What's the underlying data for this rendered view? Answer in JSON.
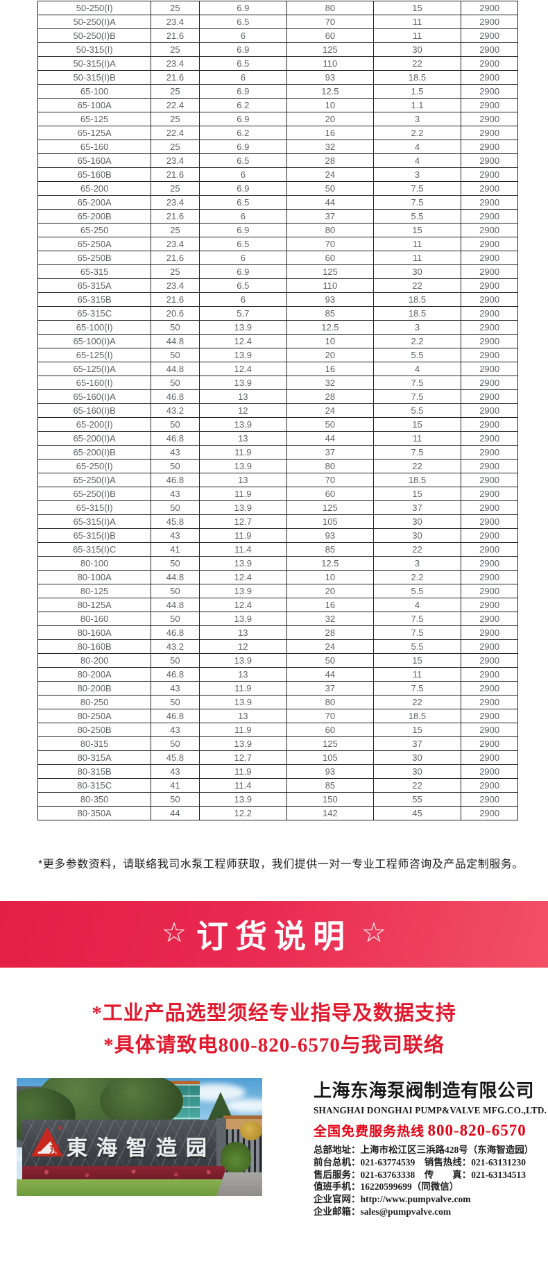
{
  "table": {
    "rows": [
      [
        "50-250(I)",
        "25",
        "6.9",
        "80",
        "15",
        "2900"
      ],
      [
        "50-250(I)A",
        "23.4",
        "6.5",
        "70",
        "11",
        "2900"
      ],
      [
        "50-250(I)B",
        "21.6",
        "6",
        "60",
        "11",
        "2900"
      ],
      [
        "50-315(I)",
        "25",
        "6.9",
        "125",
        "30",
        "2900"
      ],
      [
        "50-315(I)A",
        "23.4",
        "6.5",
        "110",
        "22",
        "2900"
      ],
      [
        "50-315(I)B",
        "21.6",
        "6",
        "93",
        "18.5",
        "2900"
      ],
      [
        "65-100",
        "25",
        "6.9",
        "12.5",
        "1.5",
        "2900"
      ],
      [
        "65-100A",
        "22.4",
        "6.2",
        "10",
        "1.1",
        "2900"
      ],
      [
        "65-125",
        "25",
        "6.9",
        "20",
        "3",
        "2900"
      ],
      [
        "65-125A",
        "22.4",
        "6.2",
        "16",
        "2.2",
        "2900"
      ],
      [
        "65-160",
        "25",
        "6.9",
        "32",
        "4",
        "2900"
      ],
      [
        "65-160A",
        "23.4",
        "6.5",
        "28",
        "4",
        "2900"
      ],
      [
        "65-160B",
        "21.6",
        "6",
        "24",
        "3",
        "2900"
      ],
      [
        "65-200",
        "25",
        "6.9",
        "50",
        "7.5",
        "2900"
      ],
      [
        "65-200A",
        "23.4",
        "6.5",
        "44",
        "7.5",
        "2900"
      ],
      [
        "65-200B",
        "21.6",
        "6",
        "37",
        "5.5",
        "2900"
      ],
      [
        "65-250",
        "25",
        "6.9",
        "80",
        "15",
        "2900"
      ],
      [
        "65-250A",
        "23.4",
        "6.5",
        "70",
        "11",
        "2900"
      ],
      [
        "65-250B",
        "21.6",
        "6",
        "60",
        "11",
        "2900"
      ],
      [
        "65-315",
        "25",
        "6.9",
        "125",
        "30",
        "2900"
      ],
      [
        "65-315A",
        "23.4",
        "6.5",
        "110",
        "22",
        "2900"
      ],
      [
        "65-315B",
        "21.6",
        "6",
        "93",
        "18.5",
        "2900"
      ],
      [
        "65-315C",
        "20.6",
        "5.7",
        "85",
        "18.5",
        "2900"
      ],
      [
        "65-100(I)",
        "50",
        "13.9",
        "12.5",
        "3",
        "2900"
      ],
      [
        "65-100(I)A",
        "44.8",
        "12.4",
        "10",
        "2.2",
        "2900"
      ],
      [
        "65-125(I)",
        "50",
        "13.9",
        "20",
        "5.5",
        "2900"
      ],
      [
        "65-125(I)A",
        "44.8",
        "12.4",
        "16",
        "4",
        "2900"
      ],
      [
        "65-160(I)",
        "50",
        "13.9",
        "32",
        "7.5",
        "2900"
      ],
      [
        "65-160(I)A",
        "46.8",
        "13",
        "28",
        "7.5",
        "2900"
      ],
      [
        "65-160(I)B",
        "43.2",
        "12",
        "24",
        "5.5",
        "2900"
      ],
      [
        "65-200(I)",
        "50",
        "13.9",
        "50",
        "15",
        "2900"
      ],
      [
        "65-200(I)A",
        "46.8",
        "13",
        "44",
        "11",
        "2900"
      ],
      [
        "65-200(I)B",
        "43",
        "11.9",
        "37",
        "7.5",
        "2900"
      ],
      [
        "65-250(I)",
        "50",
        "13.9",
        "80",
        "22",
        "2900"
      ],
      [
        "65-250(I)A",
        "46.8",
        "13",
        "70",
        "18.5",
        "2900"
      ],
      [
        "65-250(I)B",
        "43",
        "11.9",
        "60",
        "15",
        "2900"
      ],
      [
        "65-315(I)",
        "50",
        "13.9",
        "125",
        "37",
        "2900"
      ],
      [
        "65-315(I)A",
        "45.8",
        "12.7",
        "105",
        "30",
        "2900"
      ],
      [
        "65-315(I)B",
        "43",
        "11.9",
        "93",
        "30",
        "2900"
      ],
      [
        "65-315(I)C",
        "41",
        "11.4",
        "85",
        "22",
        "2900"
      ],
      [
        "80-100",
        "50",
        "13.9",
        "12.5",
        "3",
        "2900"
      ],
      [
        "80-100A",
        "44.8",
        "12.4",
        "10",
        "2.2",
        "2900"
      ],
      [
        "80-125",
        "50",
        "13.9",
        "20",
        "5.5",
        "2900"
      ],
      [
        "80-125A",
        "44.8",
        "12.4",
        "16",
        "4",
        "2900"
      ],
      [
        "80-160",
        "50",
        "13.9",
        "32",
        "7.5",
        "2900"
      ],
      [
        "80-160A",
        "46.8",
        "13",
        "28",
        "7.5",
        "2900"
      ],
      [
        "80-160B",
        "43.2",
        "12",
        "24",
        "5.5",
        "2900"
      ],
      [
        "80-200",
        "50",
        "13.9",
        "50",
        "15",
        "2900"
      ],
      [
        "80-200A",
        "46.8",
        "13",
        "44",
        "11",
        "2900"
      ],
      [
        "80-200B",
        "43",
        "11.9",
        "37",
        "7.5",
        "2900"
      ],
      [
        "80-250",
        "50",
        "13.9",
        "80",
        "22",
        "2900"
      ],
      [
        "80-250A",
        "46.8",
        "13",
        "70",
        "18.5",
        "2900"
      ],
      [
        "80-250B",
        "43",
        "11.9",
        "60",
        "15",
        "2900"
      ],
      [
        "80-315",
        "50",
        "13.9",
        "125",
        "37",
        "2900"
      ],
      [
        "80-315A",
        "45.8",
        "12.7",
        "105",
        "30",
        "2900"
      ],
      [
        "80-315B",
        "43",
        "11.9",
        "93",
        "30",
        "2900"
      ],
      [
        "80-315C",
        "41",
        "11.4",
        "85",
        "22",
        "2900"
      ],
      [
        "80-350",
        "50",
        "13.9",
        "150",
        "55",
        "2900"
      ],
      [
        "80-350A",
        "44",
        "12.2",
        "142",
        "45",
        "2900"
      ]
    ]
  },
  "note": "*更多参数资料，请联络我司水泵工程师获取，我们提供一对一专业工程师咨询及产品定制服务。",
  "banner": {
    "star_left": "☆",
    "title": "订货说明",
    "star_right": "☆"
  },
  "notices": {
    "line1": "*工业产品选型须经专业指导及数据支持",
    "line2": "*具体请致电800-820-6570与我司联络"
  },
  "company": {
    "name_cn": "上海东海泵阀制造有限公司",
    "name_en": "SHANGHAI DONGHAI PUMP&VALVE MFG.CO.,LTD.",
    "hotline_label": "全国免费服务热线",
    "hotline_number": "800-820-6570",
    "contacts": [
      "总部地址：上海市松江区三浜路428号（东海智造园）",
      "前台总机：021-63774539　销售热线：021-63131230",
      "售后服务：021-63763338　传　　真：021-63134513",
      "值班手机：16220599699（同微信）",
      "企业官网：http://www.pumpvalve.com",
      "企业邮箱：sales@pumpvalve.com"
    ],
    "photo": {
      "sign_text": "東海智造园",
      "registered_mark": "®"
    }
  },
  "colors": {
    "banner_red_left": "#e31f45",
    "banner_red_right": "#f25067",
    "notice_red": "#e2182d",
    "accent_red": "#e60012",
    "table_text": "#5e6166",
    "table_border": "#202124"
  }
}
